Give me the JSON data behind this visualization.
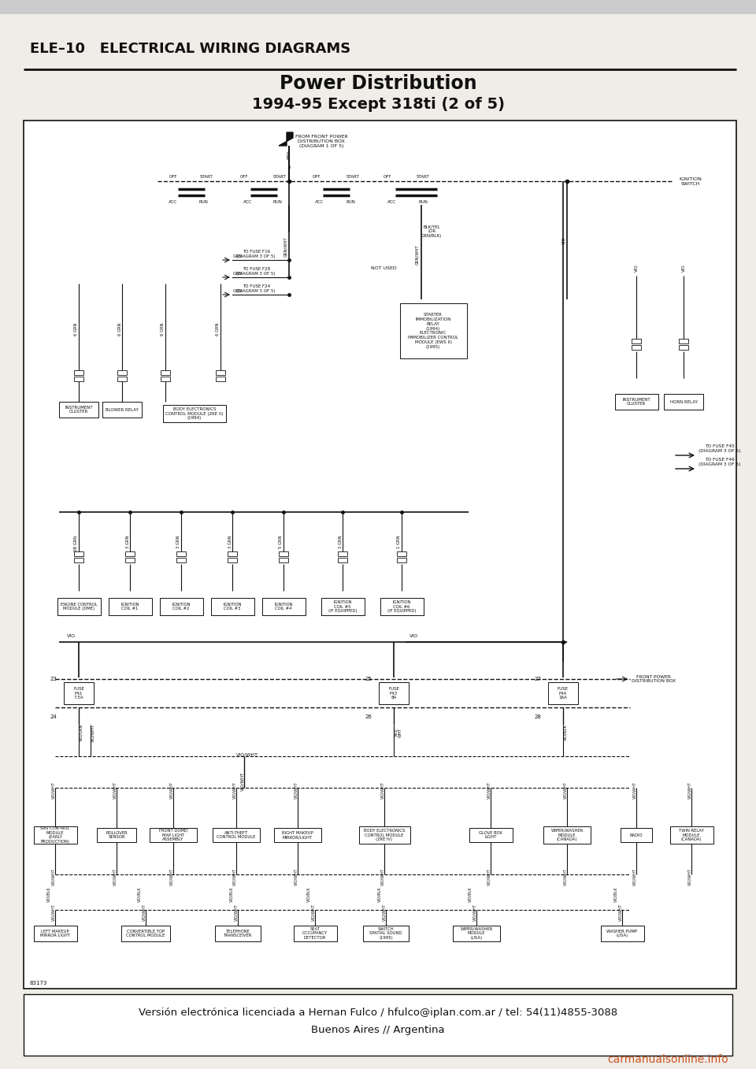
{
  "page_bg": "#f0ede8",
  "header_title": "ELE–10   ELECTRICAL WIRING DIAGRAMS",
  "chart_title": "Power Distribution",
  "chart_subtitle": "1994-95 Except 318ti (2 of 5)",
  "footer_line1": "Versión electrónica licenciada a Hernan Fulco / hfulco@iplan.com.ar / tel: 54(11)4855-3088",
  "footer_line2": "Buenos Aires // Argentina",
  "watermark": "carmanualsonline.info",
  "header_fontsize": 13,
  "title_fontsize": 17,
  "subtitle_fontsize": 14,
  "footer_fontsize": 9.5,
  "watermark_fontsize": 10,
  "lc": "#111111",
  "tc": "#111111",
  "wc": "#cc5522"
}
